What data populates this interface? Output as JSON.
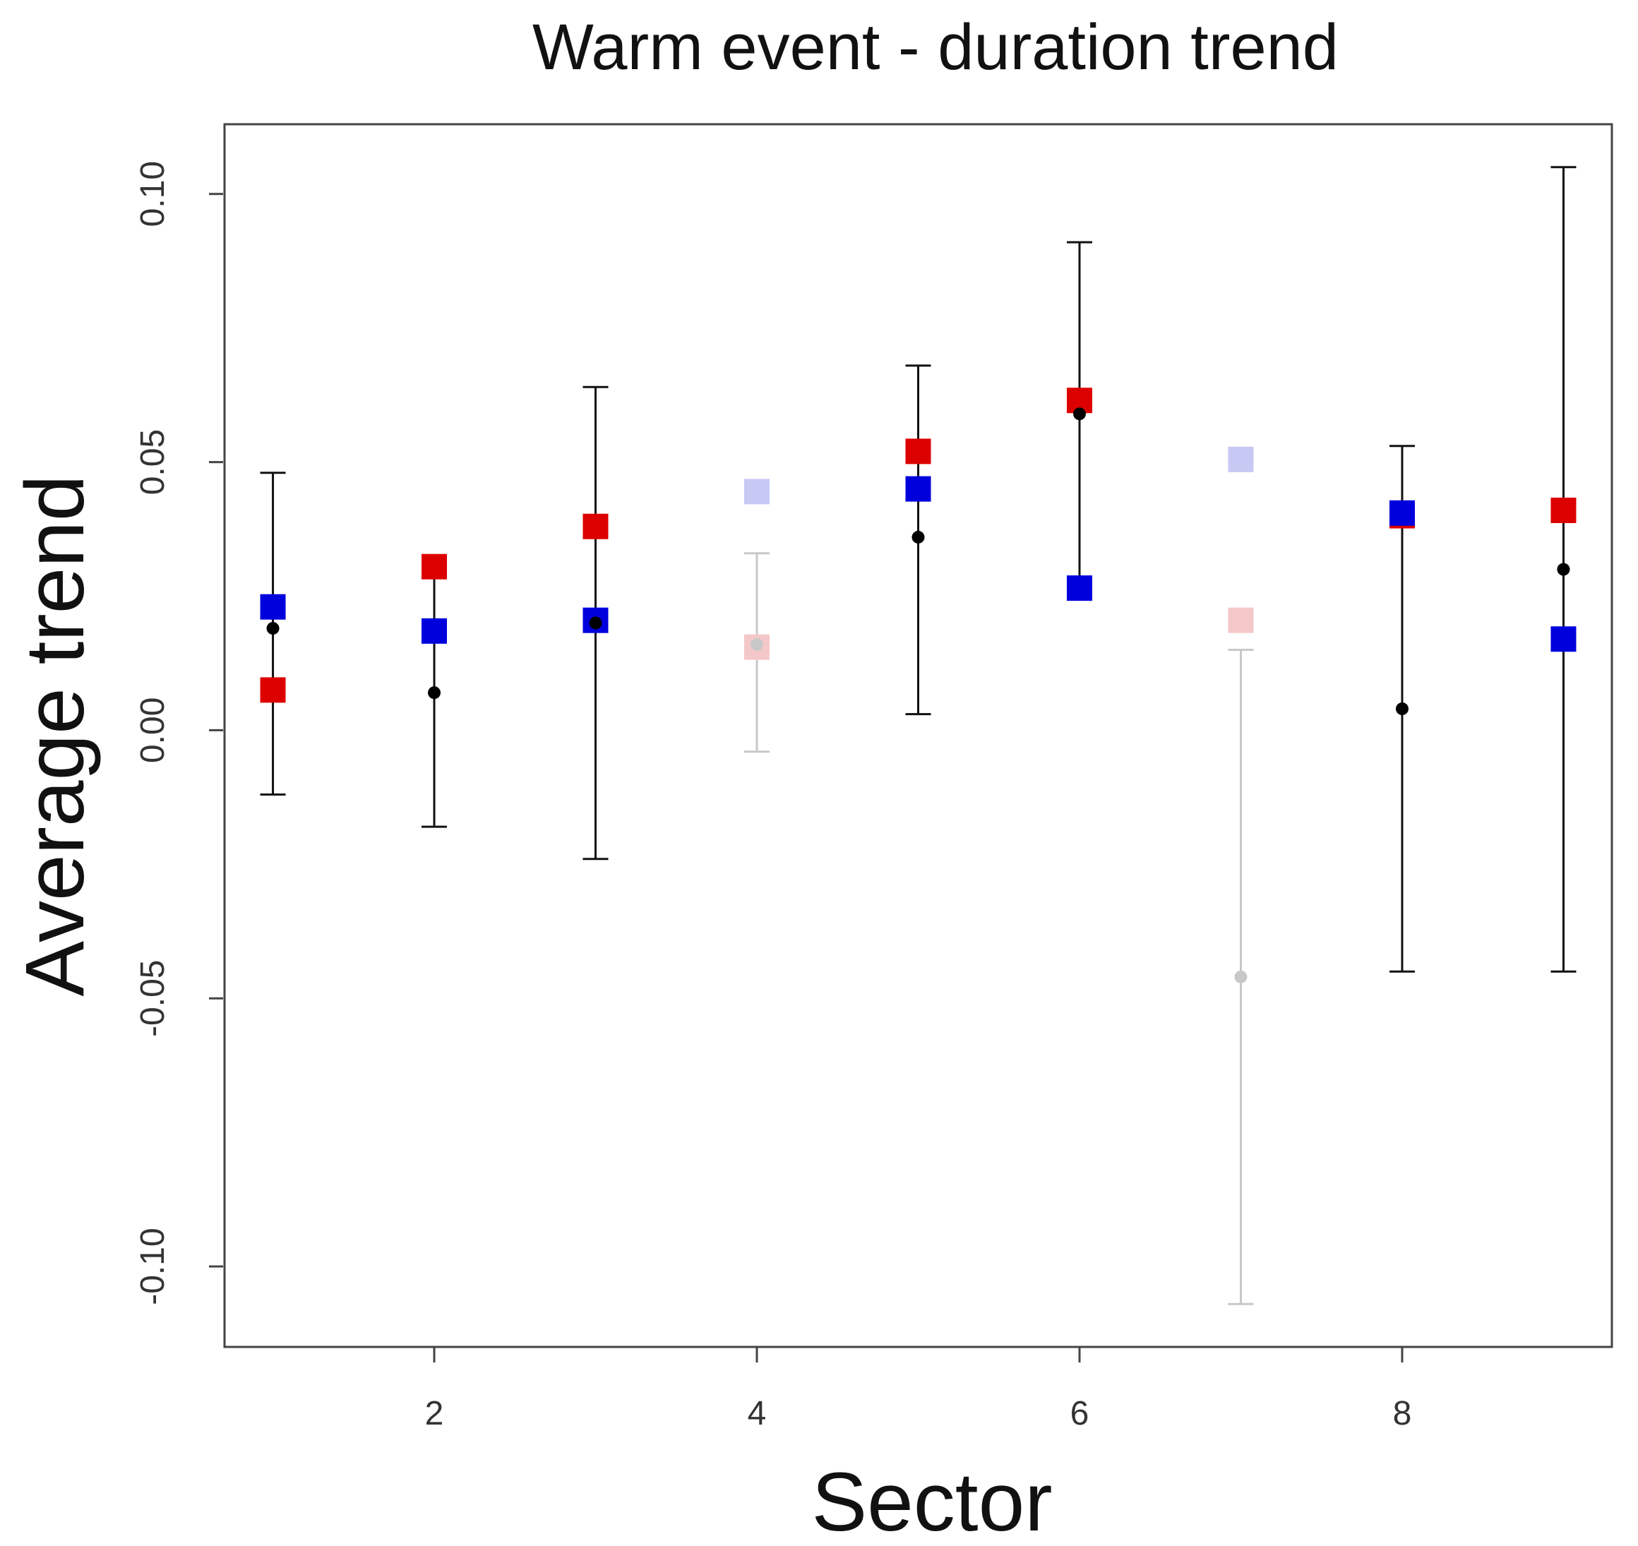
{
  "chart_data": {
    "type": "scatter",
    "title": "Warm event - duration trend",
    "xlabel": "Sector",
    "ylabel": "Average trend",
    "xlim": [
      0.7,
      9.3
    ],
    "ylim": [
      -0.115,
      0.113
    ],
    "x_ticks": [
      {
        "value": 2,
        "label": "2"
      },
      {
        "value": 4,
        "label": "4"
      },
      {
        "value": 6,
        "label": "6"
      },
      {
        "value": 8,
        "label": "8"
      }
    ],
    "y_ticks": [
      {
        "value": 0.1,
        "label": "0.10"
      },
      {
        "value": 0.05,
        "label": "0.05"
      },
      {
        "value": 0.0,
        "label": "0.00"
      },
      {
        "value": -0.05,
        "label": "-0.05"
      },
      {
        "value": -0.1,
        "label": "-0.10"
      }
    ],
    "grid": false,
    "legend": "none",
    "colors": {
      "error_bar": "#111111",
      "error_bar_faded": "#c8c8c8",
      "red_marker": "#dd0000",
      "red_marker_faded": "#f4c8c8",
      "blue_marker": "#0000dd",
      "blue_marker_faded": "#c8c8f4",
      "mean_point": "#000000",
      "mean_point_faded": "#c8c8c8",
      "axis": "#444444"
    },
    "series": [
      {
        "name": "Mean trend with error bars",
        "marker": "dot",
        "points": [
          {
            "x": 1,
            "y": 0.019,
            "low": -0.012,
            "high": 0.048,
            "faded": false
          },
          {
            "x": 2,
            "y": 0.007,
            "low": -0.018,
            "high": 0.031,
            "faded": false
          },
          {
            "x": 3,
            "y": 0.02,
            "low": -0.024,
            "high": 0.064,
            "faded": false
          },
          {
            "x": 4,
            "y": 0.016,
            "low": -0.004,
            "high": 0.033,
            "faded": true
          },
          {
            "x": 5,
            "y": 0.036,
            "low": 0.003,
            "high": 0.068,
            "faded": false
          },
          {
            "x": 6,
            "y": 0.059,
            "low": 0.027,
            "high": 0.091,
            "faded": false
          },
          {
            "x": 7,
            "y": -0.046,
            "low": -0.107,
            "high": 0.015,
            "faded": true
          },
          {
            "x": 8,
            "y": 0.004,
            "low": -0.045,
            "high": 0.053,
            "faded": false
          },
          {
            "x": 9,
            "y": 0.03,
            "low": -0.045,
            "high": 0.105,
            "faded": false
          }
        ]
      },
      {
        "name": "Red squares",
        "marker": "square",
        "color_key": "red",
        "points": [
          {
            "x": 1,
            "y": 0.0075,
            "faded": false
          },
          {
            "x": 2,
            "y": 0.0305,
            "faded": false
          },
          {
            "x": 3,
            "y": 0.038,
            "faded": false
          },
          {
            "x": 4,
            "y": 0.0155,
            "faded": true
          },
          {
            "x": 5,
            "y": 0.052,
            "faded": false
          },
          {
            "x": 6,
            "y": 0.0615,
            "faded": false
          },
          {
            "x": 7,
            "y": 0.0205,
            "faded": true
          },
          {
            "x": 8,
            "y": 0.04,
            "faded": false
          },
          {
            "x": 9,
            "y": 0.041,
            "faded": false
          }
        ]
      },
      {
        "name": "Blue squares",
        "marker": "square",
        "color_key": "blue",
        "points": [
          {
            "x": 1,
            "y": 0.023,
            "faded": false
          },
          {
            "x": 2,
            "y": 0.0185,
            "faded": false
          },
          {
            "x": 3,
            "y": 0.0205,
            "faded": false
          },
          {
            "x": 4,
            "y": 0.0445,
            "faded": true
          },
          {
            "x": 5,
            "y": 0.045,
            "faded": false
          },
          {
            "x": 6,
            "y": 0.0265,
            "faded": false
          },
          {
            "x": 7,
            "y": 0.0505,
            "faded": true
          },
          {
            "x": 8,
            "y": 0.0405,
            "faded": false
          },
          {
            "x": 9,
            "y": 0.017,
            "faded": false
          }
        ]
      }
    ]
  }
}
